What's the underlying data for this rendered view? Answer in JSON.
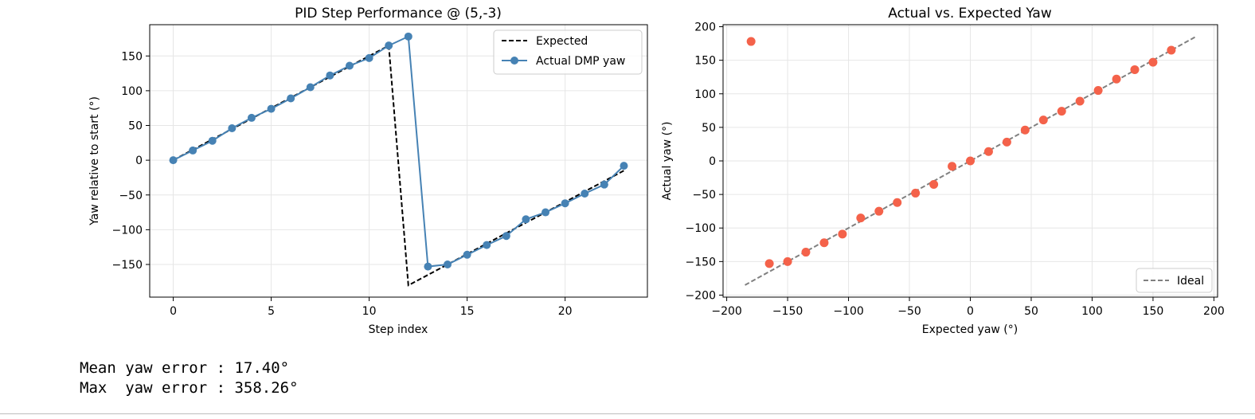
{
  "chart_data": [
    {
      "type": "line",
      "title": "PID Step Performance @ (5,-3)",
      "xlabel": "Step index",
      "ylabel": "Yaw relative to start (°)",
      "xlim": [
        -1.2,
        24.2
      ],
      "ylim": [
        -197,
        195
      ],
      "xticks": [
        0,
        5,
        10,
        15,
        20
      ],
      "yticks": [
        -150,
        -100,
        -50,
        0,
        50,
        100,
        150
      ],
      "grid": true,
      "legend_position": "top-right",
      "series": [
        {
          "name": "Expected",
          "style": "dashed",
          "color": "#000000",
          "x": [
            0,
            1,
            2,
            3,
            4,
            5,
            6,
            7,
            8,
            9,
            10,
            11,
            12,
            13,
            14,
            15,
            16,
            17,
            18,
            19,
            20,
            21,
            22,
            23
          ],
          "y": [
            0,
            15,
            30,
            45,
            60,
            75,
            90,
            105,
            120,
            135,
            150,
            165,
            -180,
            -165,
            -150,
            -135,
            -120,
            -105,
            -90,
            -75,
            -60,
            -45,
            -30,
            -15
          ]
        },
        {
          "name": "Actual DMP yaw",
          "style": "solid-markers",
          "color": "#4682b4",
          "x": [
            0,
            1,
            2,
            3,
            4,
            5,
            6,
            7,
            8,
            9,
            10,
            11,
            12,
            13,
            14,
            15,
            16,
            17,
            18,
            19,
            20,
            21,
            22,
            23
          ],
          "y": [
            0,
            14,
            28,
            46,
            61,
            74,
            89,
            105,
            122,
            136,
            147,
            165,
            178,
            -153,
            -150,
            -136,
            -122,
            -109,
            -85,
            -75,
            -62,
            -48,
            -35,
            -8
          ]
        }
      ]
    },
    {
      "type": "scatter",
      "title": "Actual vs. Expected Yaw",
      "xlabel": "Expected yaw (°)",
      "ylabel": "Actual yaw (°)",
      "xlim": [
        -203,
        203
      ],
      "ylim": [
        -203,
        203
      ],
      "xticks": [
        -200,
        -150,
        -100,
        -50,
        0,
        50,
        100,
        150,
        200
      ],
      "yticks": [
        -200,
        -150,
        -100,
        -50,
        0,
        50,
        100,
        150,
        200
      ],
      "grid": true,
      "legend_position": "bottom-right",
      "points": {
        "color": "#f4624a",
        "x": [
          -180,
          -165,
          -150,
          -135,
          -120,
          -105,
          -90,
          -75,
          -60,
          -45,
          -30,
          -15,
          0,
          15,
          30,
          45,
          60,
          75,
          90,
          105,
          120,
          135,
          150,
          165
        ],
        "y": [
          178,
          -153,
          -150,
          -136,
          -122,
          -109,
          -85,
          -75,
          -62,
          -48,
          -35,
          -8,
          0,
          14,
          28,
          46,
          61,
          74,
          89,
          105,
          122,
          136,
          147,
          165
        ]
      },
      "reference_line": {
        "name": "Ideal",
        "style": "dashed",
        "color": "#808080",
        "x": [
          -185,
          185
        ],
        "y": [
          -185,
          185
        ]
      }
    }
  ],
  "output": {
    "mean_line": "Mean yaw error : 17.40°",
    "max_line": "Max  yaw error : 358.26°"
  }
}
